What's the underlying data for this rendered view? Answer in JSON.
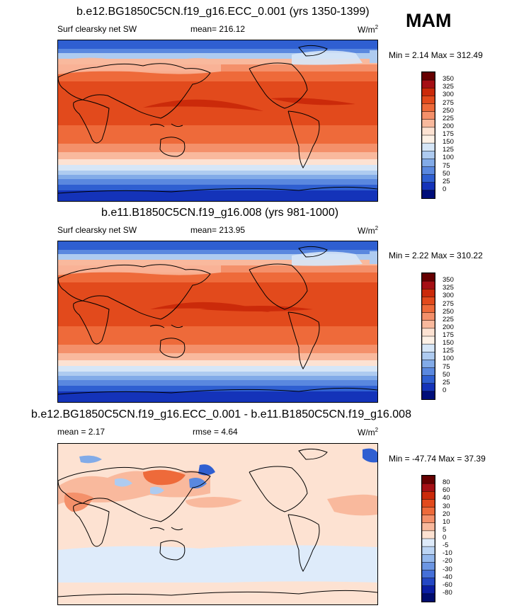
{
  "season": "MAM",
  "panels": [
    {
      "title": "b.e12.BG1850C5CN.f19_g16.ECC_0.001 (yrs 1350-1399)",
      "left_label": "Surf clearsky net SW",
      "stat_text": "mean= 216.12",
      "units": "W/m",
      "units_sup": "2",
      "minmax": "Min =  2.14 Max = 312.49",
      "levels": [
        "350",
        "325",
        "300",
        "275",
        "250",
        "225",
        "200",
        "175",
        "150",
        "125",
        "100",
        "75",
        "50",
        "25",
        "0"
      ],
      "colors": [
        "#670001",
        "#a50f15",
        "#cb2a0a",
        "#e24a1c",
        "#ee6a3a",
        "#f4906a",
        "#f9b99d",
        "#fde2d2",
        "#fdf1e6",
        "#d6e6f7",
        "#aecbf0",
        "#82abe8",
        "#5a88df",
        "#2f5fd1",
        "#1433b9",
        "#000e7a"
      ]
    },
    {
      "title": "b.e11.B1850C5CN.f19_g16.008 (yrs 981-1000)",
      "left_label": "Surf clearsky net SW",
      "stat_text": "mean= 213.95",
      "units": "W/m",
      "units_sup": "2",
      "minmax": "Min =  2.22 Max = 310.22",
      "levels": [
        "350",
        "325",
        "300",
        "275",
        "250",
        "225",
        "200",
        "175",
        "150",
        "125",
        "100",
        "75",
        "50",
        "25",
        "0"
      ],
      "colors": [
        "#670001",
        "#a50f15",
        "#cb2a0a",
        "#e24a1c",
        "#ee6a3a",
        "#f4906a",
        "#f9b99d",
        "#fde2d2",
        "#fdf1e6",
        "#d6e6f7",
        "#aecbf0",
        "#82abe8",
        "#5a88df",
        "#2f5fd1",
        "#1433b9",
        "#000e7a"
      ]
    },
    {
      "title": "b.e12.BG1850C5CN.f19_g16.ECC_0.001 - b.e11.B1850C5CN.f19_g16.008",
      "left_label": "mean =   2.17",
      "stat_text": "rmse =   4.64",
      "units": "W/m",
      "units_sup": "2",
      "minmax": "Min = -47.74 Max =  37.39",
      "levels": [
        "80",
        "60",
        "40",
        "30",
        "20",
        "10",
        "5",
        "0",
        "-5",
        "-10",
        "-20",
        "-30",
        "-40",
        "-60",
        "-80"
      ],
      "colors": [
        "#670001",
        "#a50f15",
        "#cb2a0a",
        "#e24a1c",
        "#ee6a3a",
        "#f4906a",
        "#f9b99d",
        "#fde2d2",
        "#deebfa",
        "#bcd5f4",
        "#94b8ec",
        "#6c96e3",
        "#4670d8",
        "#2447c4",
        "#0b1ea3",
        "#000c6e"
      ]
    }
  ],
  "chart_data": [
    {
      "type": "heatmap",
      "title": "b.e12.BG1850C5CN.f19_g16.ECC_0.001 (yrs 1350-1399)",
      "variable": "Surf clearsky net SW",
      "units": "W/m2",
      "mean": 216.12,
      "min": 2.14,
      "max": 312.49,
      "contour_levels": [
        0,
        25,
        50,
        75,
        100,
        125,
        150,
        175,
        200,
        225,
        250,
        275,
        300,
        325,
        350
      ]
    },
    {
      "type": "heatmap",
      "title": "b.e11.B1850C5CN.f19_g16.008 (yrs 981-1000)",
      "variable": "Surf clearsky net SW",
      "units": "W/m2",
      "mean": 213.95,
      "min": 2.22,
      "max": 310.22,
      "contour_levels": [
        0,
        25,
        50,
        75,
        100,
        125,
        150,
        175,
        200,
        225,
        250,
        275,
        300,
        325,
        350
      ]
    },
    {
      "type": "heatmap",
      "title": "b.e12.BG1850C5CN.f19_g16.ECC_0.001 - b.e11.B1850C5CN.f19_g16.008",
      "units": "W/m2",
      "mean": 2.17,
      "rmse": 4.64,
      "min": -47.74,
      "max": 37.39,
      "contour_levels": [
        -80,
        -60,
        -40,
        -30,
        -20,
        -10,
        -5,
        0,
        5,
        10,
        20,
        30,
        40,
        60,
        80
      ]
    }
  ]
}
